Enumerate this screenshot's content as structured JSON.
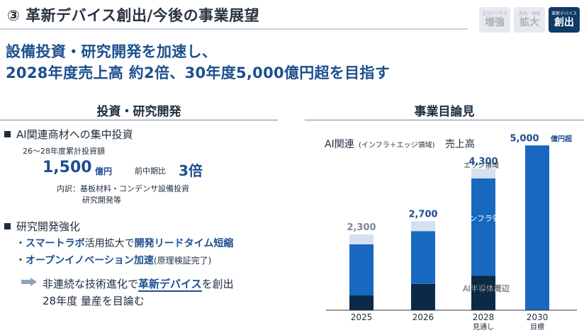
{
  "header": {
    "title": "③ 革新デバイス創出/今後の事業展望",
    "badges": [
      {
        "small": "注力ビジネス",
        "big": "増強",
        "active": false
      },
      {
        "small": "商品・領域",
        "big": "拡大",
        "active": false
      },
      {
        "small": "革新デバイス",
        "big": "創出",
        "active": true
      }
    ]
  },
  "headline": {
    "line1": "設備投資・研究開発を加速し、",
    "line2": "2028年度売上高 約2倍、30年度5,000億円超を目指す"
  },
  "left": {
    "heading": "投資・研究開発",
    "bullet1": "AI関連商材への集中投資",
    "sub1": "26～28年度累計投資額",
    "amount": "1,500",
    "amount_unit": "億円",
    "ratio_label": "前中期比",
    "ratio": "3倍",
    "breakdown1": "内訳：基板材料・コンデンサ設備投資",
    "breakdown2": "研究開発等",
    "bullet2": "研究開発強化",
    "line3_prefix": "・",
    "line3_a": "スマートラボ",
    "line3_b": "活用拡大で",
    "line3_c": "開発リードタイム短縮",
    "line4_prefix": "・",
    "line4_a": "オープンイノベーション加速",
    "line4_b": "(原理検証完了)",
    "arrow_line1_a": "非連続な技術進化で",
    "arrow_line1_b": "革新デバイス",
    "arrow_line1_c": "を創出",
    "arrow_line2": "28年度 量産を目論む"
  },
  "right": {
    "heading": "事業目論見"
  },
  "chart_data": {
    "type": "bar",
    "title": "AI関連",
    "title_note": "(インフラ＋エッジ領域)",
    "title_suffix": "売上高",
    "categories": [
      "2025",
      "2026",
      "2028",
      "2030"
    ],
    "category_sublabels": [
      "",
      "",
      "見通し",
      "目標"
    ],
    "totals": [
      2300,
      2700,
      4300,
      5000
    ],
    "total_labels": [
      "2,300",
      "2,700",
      "4,300",
      "5,000"
    ],
    "total_label_unit_last": "億円超",
    "series": [
      {
        "name": "エッジ領域",
        "values": [
          300,
          300,
          300,
          null
        ],
        "color": "#d5e1f0"
      },
      {
        "name": "インフラ領域",
        "values": [
          1550,
          1600,
          2950,
          null
        ],
        "color": "#1868c0"
      },
      {
        "name": "AI半導体周辺",
        "values": [
          450,
          800,
          1050,
          null
        ],
        "color": "#0b2a47"
      }
    ],
    "total_only_color": "#1868c0",
    "ylim": [
      0,
      5200
    ],
    "colors": {
      "label": "#1c4f8f",
      "total_label_grey": "#7b8794",
      "axis": "#333333"
    }
  }
}
